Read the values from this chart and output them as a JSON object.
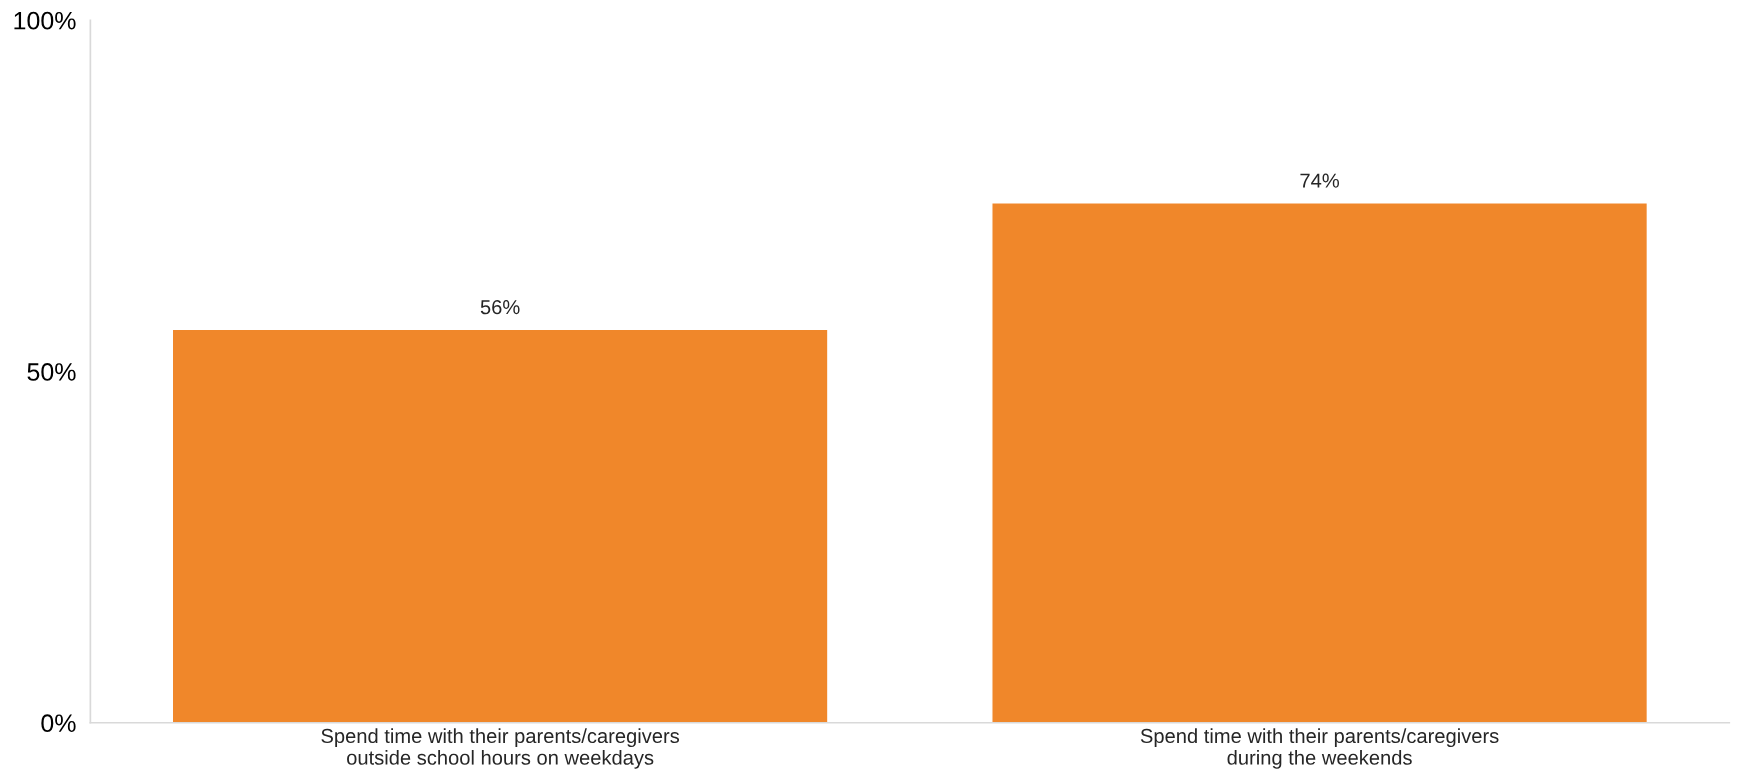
{
  "chart_data": {
    "type": "bar",
    "categories": [
      "Spend time with their parents/caregivers\noutside school hours on weekdays",
      "Spend time with their parents/caregivers\nduring the weekends"
    ],
    "values": [
      56,
      74
    ],
    "value_labels": [
      "56%",
      "74%"
    ],
    "color": "#f0872a",
    "ylim": [
      0,
      100
    ],
    "yticks": [
      {
        "value": 0,
        "label": "0%"
      },
      {
        "value": 50,
        "label": "50%"
      },
      {
        "value": 100,
        "label": "100%"
      }
    ],
    "grid": false,
    "legend": false
  }
}
